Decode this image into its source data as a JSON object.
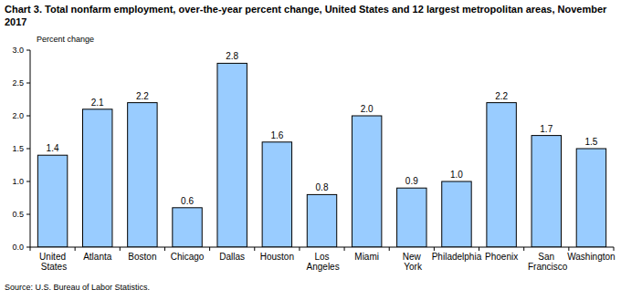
{
  "chart_data": {
    "type": "bar",
    "title": "Chart 3. Total nonfarm employment, over-the-year percent change, United States and 12 largest metropolitan areas, November 2017",
    "y_label": "Percent change",
    "source": "Source: U.S. Bureau of Labor Statistics.",
    "categories": [
      "United States",
      "Atlanta",
      "Boston",
      "Chicago",
      "Dallas",
      "Houston",
      "Los Angeles",
      "Miami",
      "New York",
      "Philadelphia",
      "Phoenix",
      "San Francisco",
      "Washington"
    ],
    "values": [
      1.4,
      2.1,
      2.2,
      0.6,
      2.8,
      1.6,
      0.8,
      2.0,
      0.9,
      1.0,
      2.2,
      1.7,
      1.5
    ],
    "value_labels": [
      "1.4",
      "2.1",
      "2.2",
      "0.6",
      "2.8",
      "1.6",
      "0.8",
      "2.0",
      "0.9",
      "1.0",
      "2.2",
      "1.7",
      "1.5"
    ],
    "color": "#99ccff",
    "ylim": [
      0,
      3
    ],
    "yticks": [
      {
        "value": 0,
        "label": "0.0"
      },
      0.5,
      {
        "value": 1,
        "label": "1.0"
      },
      1.5,
      {
        "value": 2,
        "label": "2.0"
      },
      2.5,
      {
        "value": 3,
        "label": "3.0"
      }
    ],
    "grid": false,
    "data_labels": true
  }
}
